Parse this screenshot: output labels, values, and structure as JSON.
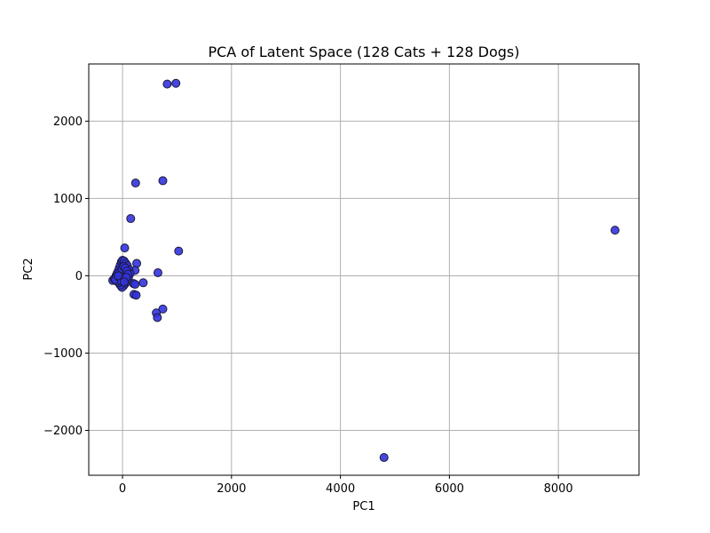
{
  "chart_data": {
    "type": "scatter",
    "title": "PCA of Latent Space (128 Cats + 128 Dogs)",
    "xlabel": "PC1",
    "ylabel": "PC2",
    "xlim": [
      -620,
      9480
    ],
    "ylim": [
      -2580,
      2740
    ],
    "xticks": [
      0,
      2000,
      4000,
      6000,
      8000
    ],
    "yticks": [
      -2000,
      -1000,
      0,
      1000,
      2000
    ],
    "xtick_labels": [
      "0",
      "2000",
      "4000",
      "6000",
      "8000"
    ],
    "ytick_labels": [
      "−2000",
      "−1000",
      "0",
      "1000",
      "2000"
    ],
    "grid": true,
    "marker_color": "#3333dd",
    "marker_edge": "#1a1a3a",
    "points": [
      {
        "x": 820,
        "y": 2480
      },
      {
        "x": 980,
        "y": 2490
      },
      {
        "x": 240,
        "y": 1200
      },
      {
        "x": 740,
        "y": 1230
      },
      {
        "x": 150,
        "y": 740
      },
      {
        "x": 9040,
        "y": 590
      },
      {
        "x": 40,
        "y": 360
      },
      {
        "x": 1030,
        "y": 320
      },
      {
        "x": 260,
        "y": 160
      },
      {
        "x": 650,
        "y": 40
      },
      {
        "x": 230,
        "y": 70
      },
      {
        "x": 380,
        "y": -90
      },
      {
        "x": 200,
        "y": -100
      },
      {
        "x": 230,
        "y": -110
      },
      {
        "x": 210,
        "y": -240
      },
      {
        "x": 250,
        "y": -250
      },
      {
        "x": 740,
        "y": -430
      },
      {
        "x": 620,
        "y": -480
      },
      {
        "x": 640,
        "y": -540
      },
      {
        "x": 4800,
        "y": -2350
      },
      {
        "x": -180,
        "y": -60
      },
      {
        "x": -150,
        "y": -40
      },
      {
        "x": -120,
        "y": 0
      },
      {
        "x": -100,
        "y": 30
      },
      {
        "x": -80,
        "y": 60
      },
      {
        "x": -60,
        "y": 100
      },
      {
        "x": -40,
        "y": 140
      },
      {
        "x": -20,
        "y": 180
      },
      {
        "x": 0,
        "y": 200
      },
      {
        "x": 30,
        "y": 190
      },
      {
        "x": 60,
        "y": 160
      },
      {
        "x": 90,
        "y": 130
      },
      {
        "x": 120,
        "y": 80
      },
      {
        "x": 140,
        "y": 30
      },
      {
        "x": 110,
        "y": -20
      },
      {
        "x": 80,
        "y": -60
      },
      {
        "x": 50,
        "y": -100
      },
      {
        "x": 20,
        "y": -130
      },
      {
        "x": -10,
        "y": -150
      },
      {
        "x": -40,
        "y": -120
      },
      {
        "x": -70,
        "y": -90
      },
      {
        "x": -100,
        "y": -70
      },
      {
        "x": -130,
        "y": -50
      },
      {
        "x": -60,
        "y": -20
      },
      {
        "x": -30,
        "y": 10
      },
      {
        "x": 0,
        "y": 40
      },
      {
        "x": 30,
        "y": 70
      },
      {
        "x": 60,
        "y": 40
      },
      {
        "x": 40,
        "y": 0
      },
      {
        "x": 10,
        "y": -40
      },
      {
        "x": -20,
        "y": -70
      },
      {
        "x": -50,
        "y": 40
      },
      {
        "x": -10,
        "y": 90
      },
      {
        "x": 20,
        "y": 120
      },
      {
        "x": 50,
        "y": 100
      },
      {
        "x": 80,
        "y": 60
      },
      {
        "x": 100,
        "y": 20
      },
      {
        "x": 70,
        "y": -20
      },
      {
        "x": 30,
        "y": -80
      },
      {
        "x": -80,
        "y": 0
      }
    ]
  }
}
